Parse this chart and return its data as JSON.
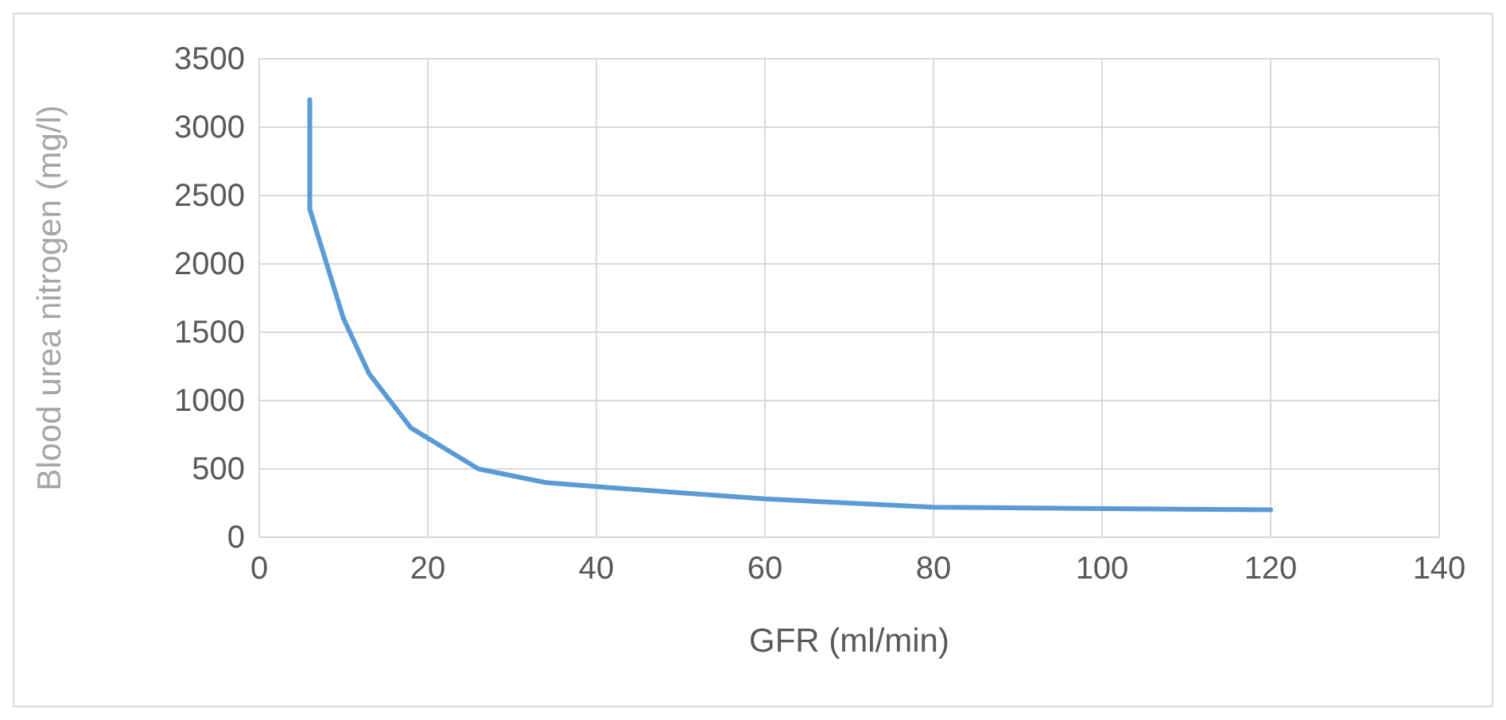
{
  "chart_data": {
    "type": "line",
    "xlabel": "GFR (ml/min)",
    "ylabel": "Blood urea nitrogen (mg/l)",
    "x": [
      6,
      6,
      10,
      13,
      18,
      26,
      34,
      40,
      60,
      80,
      100,
      120
    ],
    "series": [
      {
        "color": "#5b9bd5",
        "values": [
          3200,
          2400,
          1600,
          1200,
          800,
          500,
          400,
          370,
          280,
          220,
          210,
          200
        ]
      }
    ],
    "xlim": [
      0,
      140
    ],
    "xticks": [
      0,
      20,
      40,
      60,
      80,
      100,
      120,
      140
    ],
    "ylim": [
      0,
      3500
    ],
    "yticks": [
      0,
      500,
      1000,
      1500,
      2000,
      2500,
      3000,
      3500
    ],
    "grid": true,
    "marker": "none",
    "line_style": "solid"
  }
}
